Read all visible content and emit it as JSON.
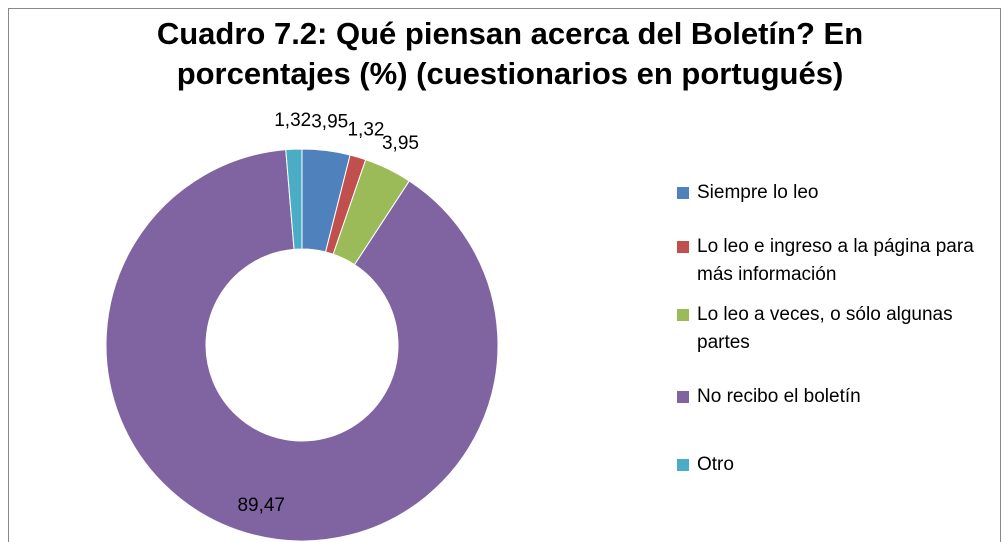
{
  "chart_data": {
    "type": "donut",
    "title": "Cuadro 7.2: Qué piensan acerca del Boletín? En porcentajes (%) (cuestionarios en portugués)",
    "categories": [
      "Siempre lo leo",
      "Lo leo e ingreso a la página para más información",
      "Lo leo a veces, o sólo algunas partes",
      "No recibo el boletín",
      "Otro"
    ],
    "values": [
      3.95,
      1.32,
      3.95,
      89.47,
      1.32
    ],
    "value_labels": [
      "3,95",
      "1,32",
      "3,95",
      "89,47",
      "1,32"
    ],
    "colors": [
      "#4f81bd",
      "#c0504d",
      "#9bbb59",
      "#8064a2",
      "#4bacc6"
    ],
    "legend": "right"
  }
}
